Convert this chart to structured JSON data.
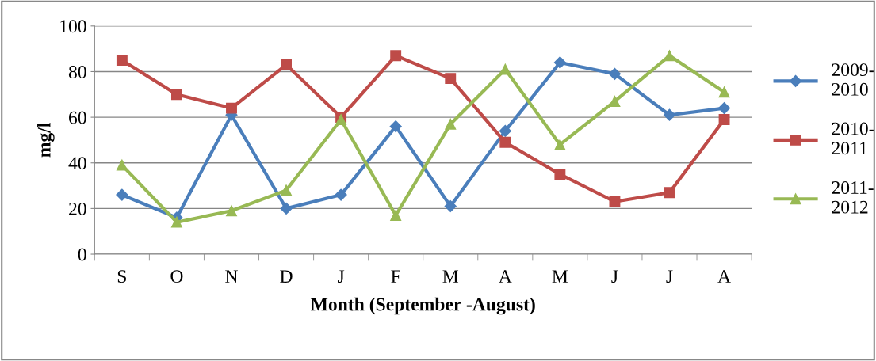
{
  "chart_data": {
    "type": "line",
    "xlabel": "Month (September -August)",
    "ylabel": "mg/l",
    "categories": [
      "S",
      "O",
      "N",
      "D",
      "J",
      "F",
      "M",
      "A",
      "M",
      "J",
      "J",
      "A"
    ],
    "ylim": [
      0,
      100
    ],
    "yticks": [
      0,
      20,
      40,
      60,
      80,
      100
    ],
    "grid": "y",
    "legend": "right",
    "line_style": "solid",
    "series": [
      {
        "name": "2009-\n2010",
        "color": "#4a7ebb",
        "marker": "diamond",
        "values": [
          26,
          16,
          61,
          20,
          26,
          56,
          21,
          54,
          84,
          79,
          61,
          64
        ]
      },
      {
        "name": "2010-\n2011",
        "color": "#be4b48",
        "marker": "square",
        "values": [
          85,
          70,
          64,
          83,
          60,
          87,
          77,
          49,
          35,
          23,
          27,
          59
        ]
      },
      {
        "name": "2011-\n2012",
        "color": "#98b954",
        "marker": "triangle",
        "values": [
          39,
          14,
          19,
          28,
          59,
          17,
          57,
          81,
          48,
          67,
          87,
          71
        ]
      }
    ]
  }
}
